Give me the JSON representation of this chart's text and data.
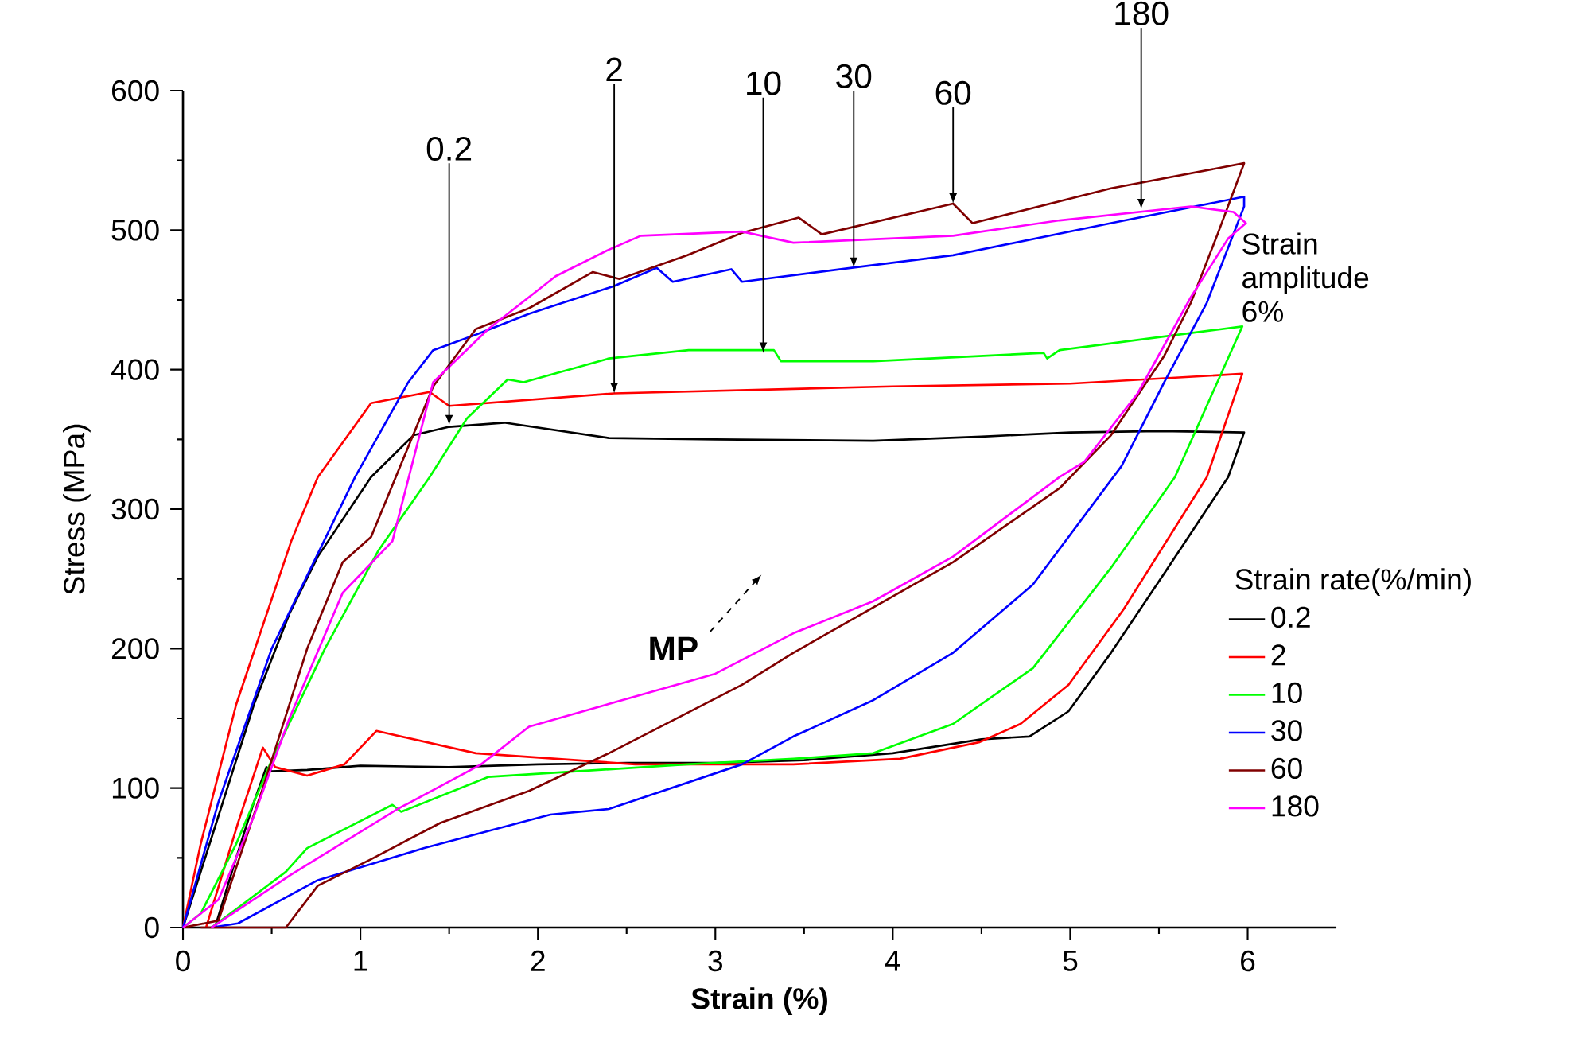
{
  "chart_data": {
    "type": "line",
    "xlabel": "Strain (%)",
    "ylabel": "Stress (MPa)",
    "legend_title": "Strain rate(%/min)",
    "legend": "right",
    "grid": false,
    "marker": "none",
    "line_style": "solid",
    "xlim": [
      0,
      6.5
    ],
    "xticks": [
      0,
      1,
      2,
      3,
      4,
      5,
      6
    ],
    "ylim": [
      0,
      600
    ],
    "yticks": [
      0,
      100,
      200,
      300,
      400,
      500,
      600
    ],
    "series": [
      {
        "name": "0.2",
        "color": "#000000",
        "x": [
          0,
          0.2,
          0.4,
          0.6,
          0.76,
          1.06,
          1.3,
          1.5,
          1.81,
          2.4,
          3.0,
          3.89,
          4.5,
          5.0,
          5.5,
          5.98,
          5.89,
          5.53,
          5.23,
          4.99,
          4.77,
          4.5,
          4.0,
          3.5,
          3.0,
          2.5,
          2.0,
          1.5,
          1.0,
          0.7,
          0.5,
          0.47,
          0.4,
          0.3,
          0.18
        ],
        "values": [
          0,
          80,
          160,
          225,
          266,
          323,
          353,
          359,
          362,
          351,
          350,
          349,
          352,
          355,
          356,
          355,
          323,
          254,
          197,
          155,
          137,
          135,
          125,
          120,
          118,
          118,
          117,
          115,
          116,
          113,
          112,
          115,
          90,
          50,
          0
        ]
      },
      {
        "name": "2",
        "color": "#ff0000",
        "x": [
          0,
          0.1,
          0.3,
          0.61,
          0.76,
          1.06,
          1.39,
          1.5,
          2.43,
          4.0,
          5.0,
          5.97,
          5.77,
          5.3,
          4.99,
          4.72,
          4.49,
          4.04,
          3.44,
          2.55,
          1.65,
          1.09,
          0.91,
          0.7,
          0.52,
          0.45,
          0.31,
          0.13
        ],
        "values": [
          0,
          60,
          160,
          277,
          323,
          376,
          384,
          374,
          383,
          388,
          390,
          397,
          323,
          228,
          174,
          146,
          133,
          121,
          117,
          117,
          125,
          141,
          117,
          109,
          115,
          129,
          75,
          0
        ]
      },
      {
        "name": "10",
        "color": "#00ff00",
        "x": [
          0,
          0.1,
          0.3,
          0.5,
          0.8,
          1.1,
          1.39,
          1.6,
          1.83,
          1.92,
          2.4,
          2.85,
          3.33,
          3.37,
          3.89,
          4.85,
          4.87,
          4.94,
          5.97,
          5.59,
          5.23,
          4.79,
          4.34,
          3.89,
          3.44,
          2.84,
          1.72,
          1.23,
          1.18,
          0.7,
          0.58,
          0.34,
          0.16
        ],
        "values": [
          0,
          10,
          60,
          120,
          200,
          270,
          323,
          365,
          393,
          391,
          408,
          414,
          414,
          406,
          406,
          412,
          408,
          414,
          431,
          323,
          258,
          186,
          146,
          125,
          121,
          117,
          108,
          83,
          88,
          57,
          40,
          17,
          0
        ]
      },
      {
        "name": "30",
        "color": "#0000ff",
        "x": [
          0,
          0.2,
          0.5,
          0.97,
          1.27,
          1.41,
          1.65,
          1.95,
          2.43,
          2.67,
          2.76,
          3.09,
          3.15,
          3.77,
          4.34,
          5.23,
          5.98,
          5.98,
          5.77,
          5.53,
          5.29,
          4.79,
          4.34,
          3.89,
          3.44,
          3.15,
          2.4,
          2.07,
          1.36,
          0.76,
          0.31,
          0.16
        ],
        "values": [
          0,
          90,
          200,
          323,
          391,
          414,
          425,
          440,
          460,
          473,
          463,
          472,
          463,
          473,
          482,
          505,
          524,
          517,
          448,
          391,
          331,
          246,
          197,
          163,
          137,
          117,
          85,
          81,
          57,
          34,
          3,
          0
        ]
      },
      {
        "name": "60",
        "color": "#800000",
        "x": [
          0,
          0.2,
          0.45,
          0.7,
          0.9,
          1.06,
          1.41,
          1.65,
          1.95,
          2.31,
          2.46,
          2.84,
          3.15,
          3.47,
          3.6,
          4.34,
          4.45,
          5.23,
          5.98,
          5.83,
          5.68,
          5.53,
          5.23,
          4.94,
          4.34,
          3.44,
          3.15,
          2.4,
          1.95,
          1.45,
          1.06,
          0.76,
          0.58,
          0.1
        ],
        "values": [
          0,
          5,
          100,
          200,
          262,
          280,
          388,
          429,
          444,
          470,
          465,
          482,
          498,
          509,
          497,
          519,
          505,
          530,
          548,
          497,
          448,
          410,
          353,
          315,
          262,
          197,
          174,
          125,
          98,
          75,
          49,
          30,
          0,
          0
        ]
      },
      {
        "name": "180",
        "color": "#ff00ff",
        "x": [
          0,
          0.2,
          0.4,
          0.6,
          0.9,
          1.18,
          1.41,
          1.72,
          2.1,
          2.4,
          2.58,
          3.15,
          3.44,
          4.34,
          4.94,
          5.68,
          5.92,
          5.99,
          5.89,
          5.68,
          5.38,
          5.08,
          4.94,
          4.34,
          3.89,
          3.44,
          3.0,
          1.95,
          1.68,
          1.21,
          0.61,
          0.16
        ],
        "values": [
          0,
          20,
          80,
          150,
          240,
          277,
          391,
          429,
          467,
          486,
          496,
          499,
          491,
          496,
          507,
          517,
          513,
          505,
          494,
          452,
          383,
          334,
          323,
          266,
          234,
          211,
          182,
          144,
          117,
          85,
          38,
          0
        ]
      }
    ],
    "annotations": [
      {
        "text": "0.2",
        "x": 1.5,
        "y": 360
      },
      {
        "text": "2",
        "x": 2.43,
        "y": 383
      },
      {
        "text": "10",
        "x": 3.27,
        "y": 412
      },
      {
        "text": "30",
        "x": 3.78,
        "y": 473
      },
      {
        "text": "60",
        "x": 4.34,
        "y": 519
      },
      {
        "text": "180",
        "x": 5.4,
        "y": 515
      },
      "MP",
      "Strain amplitude 6%"
    ]
  }
}
